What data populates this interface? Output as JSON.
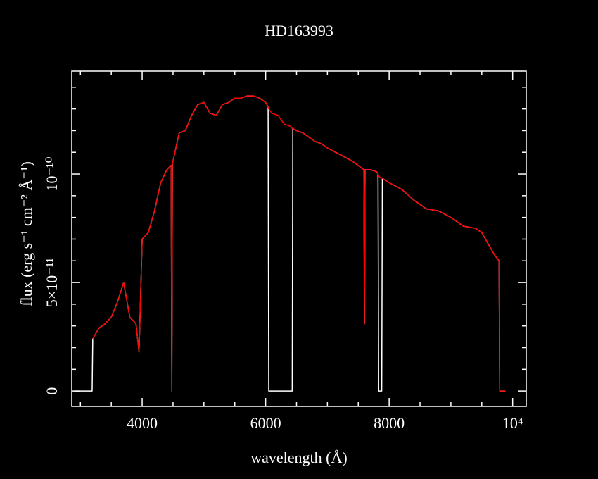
{
  "chart_data": {
    "type": "line",
    "title": "HD163993",
    "x_label": "wavelength (Å)",
    "y_label": "flux (erg s⁻¹ cm⁻² Å⁻¹)",
    "xlim": [
      2860,
      10220
    ],
    "ylim": [
      -7.1e-12,
      1.474e-10
    ],
    "xticks": [
      4000,
      6000,
      8000,
      {
        "value": 10000,
        "label": "10⁴"
      }
    ],
    "xminorticks": [
      3000,
      3500,
      4500,
      5000,
      5500,
      6500,
      7000,
      7500,
      8500,
      9000,
      9500
    ],
    "yticks": [
      0,
      {
        "value": 5e-11,
        "label": "5×10⁻¹¹"
      },
      {
        "value": 1e-10,
        "label": "10⁻¹⁰"
      }
    ],
    "yminorticks": [
      1e-11,
      2e-11,
      3e-11,
      4e-11,
      6e-11,
      7e-11,
      8e-11,
      9e-11,
      1.1e-10,
      1.2e-10,
      1.3e-10,
      1.4e-10
    ],
    "x": [
      2900,
      3190,
      3200,
      3300,
      3400,
      3500,
      3600,
      3700,
      3800,
      3900,
      3950,
      4000,
      4100,
      4200,
      4300,
      4400,
      4470,
      4480,
      4490,
      4500,
      4600,
      4700,
      4800,
      4900,
      5000,
      5100,
      5200,
      5300,
      5400,
      5500,
      5600,
      5700,
      5800,
      5900,
      6000,
      6040,
      6050,
      6100,
      6200,
      6300,
      6400,
      6430,
      6440,
      6500,
      6600,
      6700,
      6800,
      6900,
      7000,
      7200,
      7400,
      7590,
      7600,
      7610,
      7700,
      7800,
      7820,
      7830,
      7880,
      7890,
      8000,
      8200,
      8400,
      8600,
      8800,
      9000,
      9200,
      9400,
      9500,
      9600,
      9700,
      9780,
      9790,
      9880
    ],
    "series": [
      {
        "color": "#ffffff",
        "values": [
          0,
          0,
          2.4e-11,
          2.9e-11,
          3.1e-11,
          3.4e-11,
          4.1e-11,
          5e-11,
          3.4e-11,
          3.1e-11,
          1.8e-11,
          7e-11,
          7.3e-11,
          8.3e-11,
          9.6e-11,
          1.02e-10,
          1.04e-10,
          0,
          1.05e-10,
          1.06e-10,
          1.19e-10,
          1.2e-10,
          1.27e-10,
          1.32e-10,
          1.33e-10,
          1.28e-10,
          1.27e-10,
          1.32e-10,
          1.33e-10,
          1.35e-10,
          1.35e-10,
          1.36e-10,
          1.36e-10,
          1.35e-10,
          1.33e-10,
          1.31e-10,
          0,
          0,
          0,
          0,
          0,
          0,
          1.21e-10,
          1.2e-10,
          1.19e-10,
          1.17e-10,
          1.15e-10,
          1.14e-10,
          1.12e-10,
          1.09e-10,
          1.06e-10,
          1.02e-10,
          3.1e-11,
          1.02e-10,
          1.02e-10,
          1.01e-10,
          1e-10,
          0,
          0,
          9.8e-11,
          9.6e-11,
          9.3e-11,
          8.8e-11,
          8.4e-11,
          8.3e-11,
          8e-11,
          7.6e-11,
          7.5e-11,
          7.3e-11,
          6.8e-11,
          6.3e-11,
          6e-11,
          0,
          0
        ]
      },
      {
        "color": "#ff0000",
        "values": [
          null,
          null,
          2.4e-11,
          2.9e-11,
          3.1e-11,
          3.4e-11,
          4.1e-11,
          5e-11,
          3.4e-11,
          3.1e-11,
          1.8e-11,
          7e-11,
          7.3e-11,
          8.3e-11,
          9.6e-11,
          1.02e-10,
          1.04e-10,
          0,
          1.05e-10,
          1.06e-10,
          1.19e-10,
          1.2e-10,
          1.27e-10,
          1.32e-10,
          1.33e-10,
          1.28e-10,
          1.27e-10,
          1.32e-10,
          1.33e-10,
          1.35e-10,
          1.35e-10,
          1.36e-10,
          1.36e-10,
          1.35e-10,
          1.33e-10,
          1.31e-10,
          1.3e-10,
          1.28e-10,
          1.27e-10,
          1.23e-10,
          1.22e-10,
          1.21e-10,
          1.21e-10,
          1.2e-10,
          1.19e-10,
          1.17e-10,
          1.15e-10,
          1.14e-10,
          1.12e-10,
          1.09e-10,
          1.06e-10,
          1.02e-10,
          3.1e-11,
          1.02e-10,
          1.02e-10,
          1.01e-10,
          1e-10,
          9.9e-11,
          9.8e-11,
          9.8e-11,
          9.6e-11,
          9.3e-11,
          8.8e-11,
          8.4e-11,
          8.3e-11,
          8e-11,
          7.6e-11,
          7.5e-11,
          7.3e-11,
          6.8e-11,
          6.3e-11,
          6e-11,
          0,
          0
        ]
      }
    ]
  }
}
